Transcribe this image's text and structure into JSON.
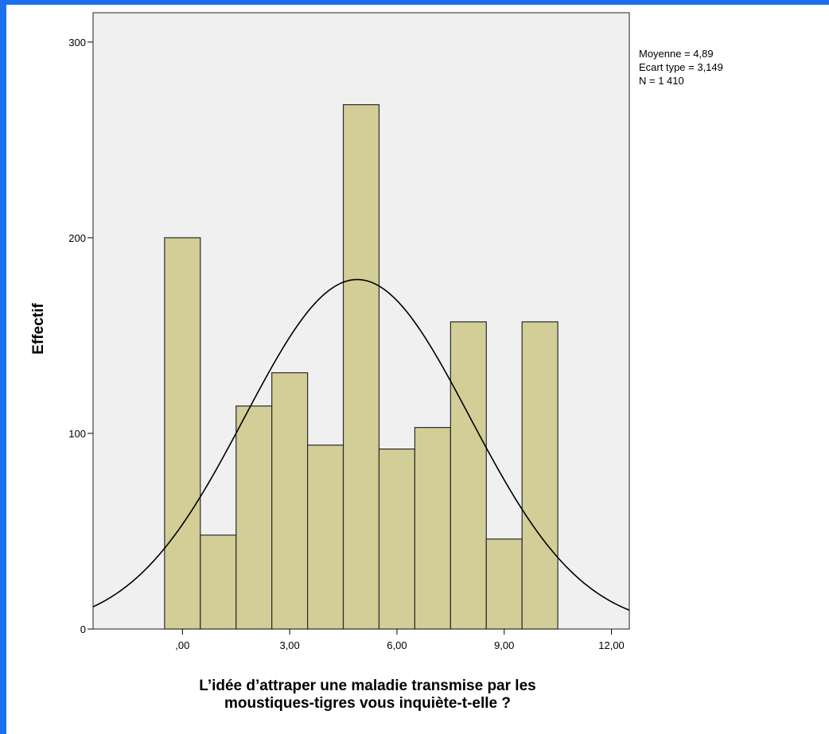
{
  "chart_data": {
    "type": "bar",
    "subtype": "histogram",
    "title": "",
    "xlabel": [
      "L’idée d’attraper une maladie transmise par les",
      "moustiques-tigres vous inquiète-t-elle ?"
    ],
    "ylabel": "Effectif",
    "x_ticks": [
      ",00",
      "3,00",
      "6,00",
      "9,00",
      "12,00"
    ],
    "x_tick_values": [
      0,
      3,
      6,
      9,
      12
    ],
    "y_ticks": [
      "0",
      "100",
      "200",
      "300"
    ],
    "y_tick_values": [
      0,
      100,
      200,
      300
    ],
    "xlim": [
      -2.5,
      12.5
    ],
    "ylim": [
      0,
      315
    ],
    "bin_width": 1,
    "bins": [
      0,
      1,
      2,
      3,
      4,
      5,
      6,
      7,
      8,
      9,
      10
    ],
    "values": [
      200,
      48,
      114,
      131,
      94,
      268,
      92,
      103,
      157,
      46,
      157
    ],
    "normal_curve": {
      "mean": 4.89,
      "std": 3.149,
      "n": 1410
    },
    "stats_lines": [
      "Moyenne = 4,89",
      "Ecart type = 3,149",
      "N = 1 410"
    ],
    "grid": false,
    "colors": {
      "bar_fill": "#d3cd97",
      "bar_stroke": "#2b2b2b",
      "plot_bg": "#f0f0f0",
      "curve": "#000000"
    }
  }
}
